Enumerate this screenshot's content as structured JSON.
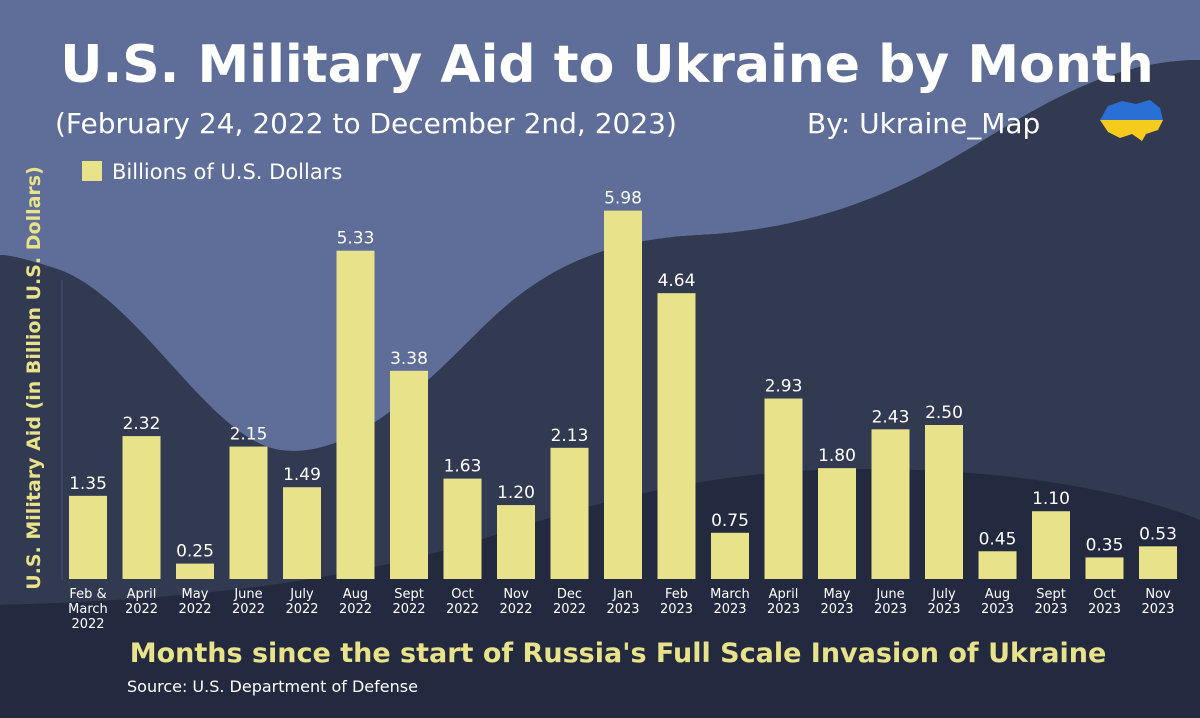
{
  "chart_data": {
    "type": "bar",
    "title": "U.S. Military Aid to Ukraine by Month",
    "subtitle": "(February 24, 2022 to December 2nd, 2023)",
    "byline": "By: Ukraine_Map",
    "legend": "Billions of U.S. Dollars",
    "ylabel": "U.S. Military Aid (in Billion U.S. Dollars)",
    "xlabel": "Months since the start of Russia's Full Scale Invasion of Ukraine",
    "source": "Source: U.S. Department of Defense",
    "ylim": [
      0,
      6.5
    ],
    "categories": [
      [
        "Feb &",
        "March",
        "2022"
      ],
      [
        "April",
        "2022"
      ],
      [
        "May",
        "2022"
      ],
      [
        "June",
        "2022"
      ],
      [
        "July",
        "2022"
      ],
      [
        "Aug",
        "2022"
      ],
      [
        "Sept",
        "2022"
      ],
      [
        "Oct",
        "2022"
      ],
      [
        "Nov",
        "2022"
      ],
      [
        "Dec",
        "2022"
      ],
      [
        "Jan",
        "2023"
      ],
      [
        "Feb",
        "2023"
      ],
      [
        "March",
        "2023"
      ],
      [
        "April",
        "2023"
      ],
      [
        "May",
        "2023"
      ],
      [
        "June",
        "2023"
      ],
      [
        "July",
        "2023"
      ],
      [
        "Aug",
        "2023"
      ],
      [
        "Sept",
        "2023"
      ],
      [
        "Oct",
        "2023"
      ],
      [
        "Nov",
        "2023"
      ]
    ],
    "values": [
      1.35,
      2.32,
      0.25,
      2.15,
      1.49,
      5.33,
      3.38,
      1.63,
      1.2,
      2.13,
      5.98,
      4.64,
      0.75,
      2.93,
      1.8,
      2.43,
      2.5,
      0.45,
      1.1,
      0.35,
      0.53
    ],
    "labels": [
      "1.35",
      "2.32",
      "0.25",
      "2.15",
      "1.49",
      "5.33",
      "3.38",
      "1.63",
      "1.20",
      "2.13",
      "5.98",
      "4.64",
      "0.75",
      "2.93",
      "1.80",
      "2.43",
      "2.50",
      "0.45",
      "1.10",
      "0.35",
      "0.53"
    ]
  },
  "colors": {
    "bar": "#e8e38a",
    "accent_text": "#e8e38a",
    "bg_dark": "#1f2436",
    "bg_mid": "#323a52",
    "bg_light": "#5e6e99",
    "flag_blue": "#2a6fd6",
    "flag_yellow": "#f5cc1e"
  }
}
